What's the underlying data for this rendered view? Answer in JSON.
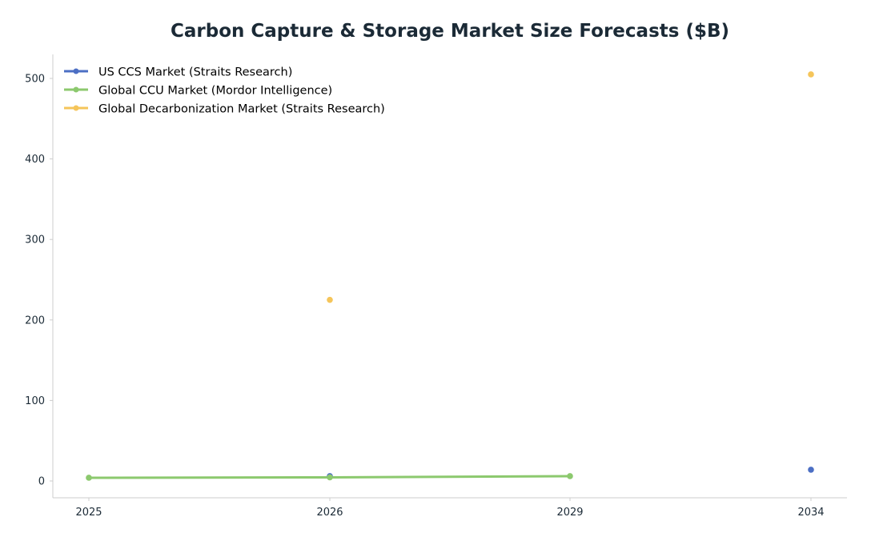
{
  "chart_data": {
    "type": "line",
    "title": "Carbon Capture & Storage Market Size Forecasts ($B)",
    "xlabel": "",
    "ylabel": "",
    "categories": [
      "2025",
      "2026",
      "2029",
      "2034"
    ],
    "ylim": [
      -20,
      530
    ],
    "yticks": [
      0,
      100,
      200,
      300,
      400,
      500
    ],
    "grid": false,
    "legend_position": "top-left",
    "series": [
      {
        "name": "US CCS Market (Straits Research)",
        "color": "#4c6fc4",
        "values": [
          null,
          6,
          null,
          14
        ]
      },
      {
        "name": "Global CCU Market (Mordor Intelligence)",
        "color": "#8cc96e",
        "values": [
          4,
          4.5,
          6,
          null
        ]
      },
      {
        "name": "Global Decarbonization Market (Straits Research)",
        "color": "#f5c55a",
        "values": [
          null,
          225,
          null,
          505
        ]
      }
    ]
  }
}
